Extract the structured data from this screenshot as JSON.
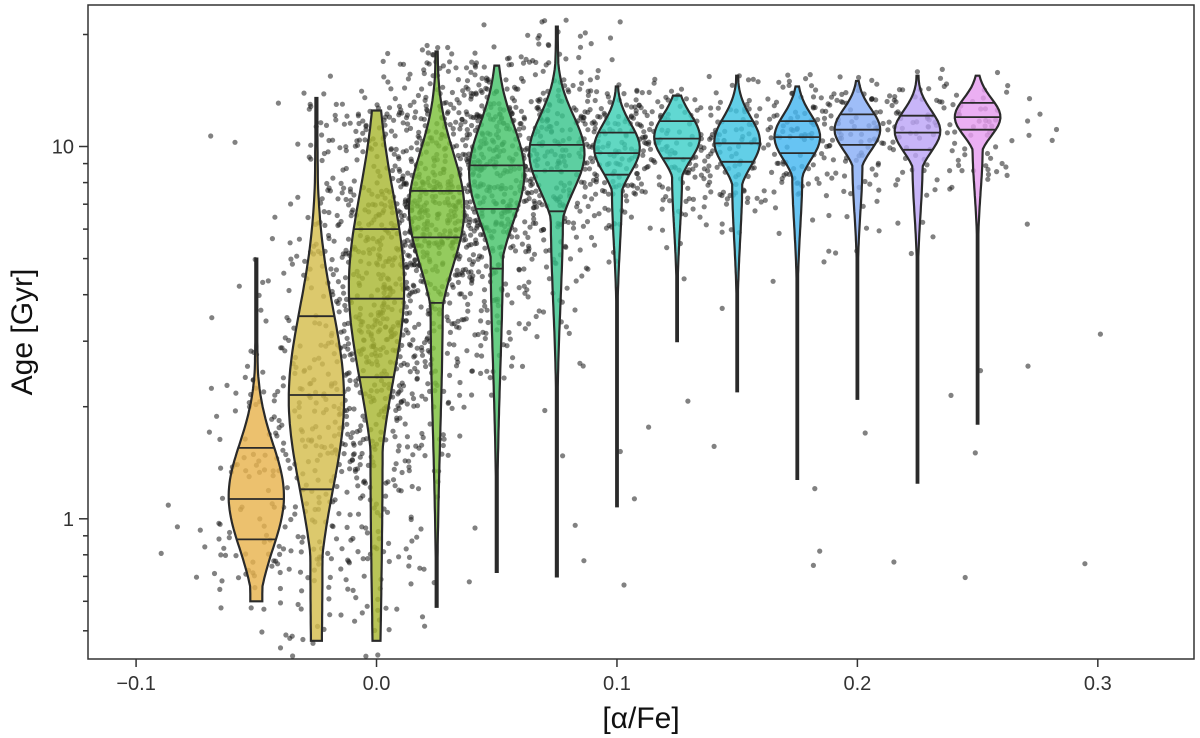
{
  "chart_data": {
    "type": "violin",
    "xlabel": "[α/Fe]",
    "ylabel": "Age [Gyr]",
    "xlim": [
      -0.12,
      0.34
    ],
    "ylim": [
      0.42,
      24
    ],
    "yscale": "log",
    "grid": false,
    "legend": "none",
    "x_ticks": [
      {
        "value": -0.1,
        "label": "−0.1"
      },
      {
        "value": 0.0,
        "label": "0.0"
      },
      {
        "value": 0.1,
        "label": "0.1"
      },
      {
        "value": 0.2,
        "label": "0.2"
      },
      {
        "value": 0.3,
        "label": "0.3"
      }
    ],
    "y_ticks": [
      {
        "value": 1,
        "label": "1"
      },
      {
        "value": 10,
        "label": "10"
      }
    ],
    "series": [
      {
        "x": -0.05,
        "color": "#e8b34e",
        "min": 0.6,
        "max": 5.0,
        "quartiles": [
          0.88,
          1.13,
          1.55
        ],
        "mode": 1.15,
        "spread": 0.14,
        "halfwidth": 0.0115
      },
      {
        "x": -0.025,
        "color": "#d4bd4d",
        "min": 0.47,
        "max": 13.5,
        "quartiles": [
          1.2,
          2.15,
          3.5
        ],
        "mode": 2.1,
        "spread": 0.24,
        "halfwidth": 0.0115
      },
      {
        "x": 0.0,
        "color": "#a8b732",
        "min": 0.47,
        "max": 12.5,
        "quartiles": [
          2.4,
          3.9,
          6.0
        ],
        "mode": 4.2,
        "spread": 0.25,
        "halfwidth": 0.0115
      },
      {
        "x": 0.025,
        "color": "#7dbf3a",
        "min": 0.58,
        "max": 18.0,
        "quartiles": [
          3.8,
          5.7,
          7.6
        ],
        "mode": 6.8,
        "spread": 0.15,
        "halfwidth": 0.0115
      },
      {
        "x": 0.05,
        "color": "#45c36a",
        "min": 0.72,
        "max": 16.5,
        "quartiles": [
          4.7,
          6.8,
          8.9
        ],
        "mode": 8.5,
        "spread": 0.13,
        "halfwidth": 0.0115
      },
      {
        "x": 0.075,
        "color": "#39c48c",
        "min": 0.7,
        "max": 21.0,
        "quartiles": [
          6.7,
          8.6,
          10.1
        ],
        "mode": 9.6,
        "spread": 0.1,
        "halfwidth": 0.0115
      },
      {
        "x": 0.1,
        "color": "#3ecfb5",
        "min": 1.08,
        "max": 14.5,
        "quartiles": [
          8.4,
          9.6,
          10.9
        ],
        "mode": 9.9,
        "spread": 0.065,
        "halfwidth": 0.0095
      },
      {
        "x": 0.125,
        "color": "#3ed0c8",
        "min": 3.0,
        "max": 13.7,
        "quartiles": [
          9.3,
          10.5,
          11.7
        ],
        "mode": 10.6,
        "spread": 0.06,
        "halfwidth": 0.0095
      },
      {
        "x": 0.15,
        "color": "#40c4e2",
        "min": 2.2,
        "max": 15.5,
        "quartiles": [
          9.1,
          10.2,
          11.7
        ],
        "mode": 10.3,
        "spread": 0.065,
        "halfwidth": 0.0095
      },
      {
        "x": 0.175,
        "color": "#45b7f0",
        "min": 1.28,
        "max": 14.5,
        "quartiles": [
          9.6,
          10.6,
          11.7
        ],
        "mode": 10.6,
        "spread": 0.06,
        "halfwidth": 0.0095
      },
      {
        "x": 0.2,
        "color": "#89aef6",
        "min": 2.1,
        "max": 15.0,
        "quartiles": [
          10.1,
          11.1,
          12.2
        ],
        "mode": 11.1,
        "spread": 0.055,
        "halfwidth": 0.0095
      },
      {
        "x": 0.225,
        "color": "#bca5f7",
        "min": 1.25,
        "max": 15.5,
        "quartiles": [
          9.8,
          10.9,
          12.1
        ],
        "mode": 11.0,
        "spread": 0.055,
        "halfwidth": 0.0095
      },
      {
        "x": 0.25,
        "color": "#e79ef0",
        "min": 1.8,
        "max": 15.5,
        "quartiles": [
          11.1,
          12.0,
          13.1
        ],
        "mode": 12.0,
        "spread": 0.05,
        "halfwidth": 0.0095
      }
    ]
  }
}
